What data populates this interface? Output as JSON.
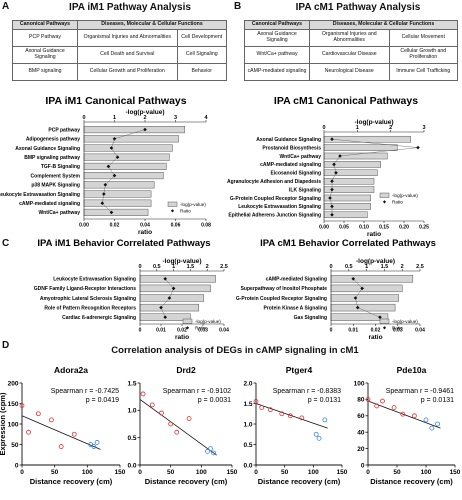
{
  "panel_a": {
    "letter": "A",
    "title": "IPA iM1 Pathway Analysis",
    "table": {
      "headers": [
        "Canonical Pathways",
        "Diseases, Molecular & Cellular Functions"
      ],
      "rows": [
        [
          "PCP Pathway",
          "Organismal Injuries and Abnormalities",
          "Cell Development"
        ],
        [
          "Axonal Guidance Signaling",
          "Cell Death and Survival",
          "Cell Signaling"
        ],
        [
          "BMP signaling",
          "Cellular Growth and Proliferation",
          "Behavior"
        ]
      ]
    }
  },
  "panel_b": {
    "letter": "B",
    "title": "IPA cM1 Pathway Analysis",
    "table": {
      "headers": [
        "Canonical Pathways",
        "Diseases, Molecular & Cellular Functions"
      ],
      "rows": [
        [
          "Axonal Guidance Signaling",
          "Organismal Injuries and Abnormalities",
          "Cellular Movement"
        ],
        [
          "Wnt/Ca+ pathway",
          "Cardiovascular Disease",
          "Cellular Growth and Proliferation"
        ],
        [
          "cAMP-mediated signaling",
          "Neurological Disease",
          "Immune Cell Trafficking"
        ]
      ]
    }
  },
  "panel_c": {
    "letter": "C"
  },
  "panel_d": {
    "letter": "D",
    "title": "Correlation analysis of DEGs in cAMP signaling in cM1"
  },
  "legend": {
    "bar_label": "-log(p-value)",
    "ratio_label": "Ratio"
  },
  "colors": {
    "bar": "#d4d4d4",
    "red_points": "#e03030",
    "blue_points": "#3a86d8"
  },
  "chart_data": [
    {
      "type": "bar",
      "title": "IPA iM1 Canonical Pathways",
      "top_axis_label": "-log(p-value)",
      "bottom_axis_label": "ratio",
      "xlim_top": [
        0,
        4
      ],
      "top_ticks": [
        "0",
        "1",
        "2",
        "3",
        "4"
      ],
      "xlim_bottom": [
        0,
        0.08
      ],
      "bottom_ticks": [
        "0.00",
        "0.02",
        "0.04",
        "0.06",
        "0.08"
      ],
      "categories": [
        "PCP pathway",
        "Adipogenesis pathway",
        "Axonal Guidance Signaling",
        "BMP signaling pathway",
        "TGF-B Signaling",
        "Complement System",
        "p38 MAPK Signaling",
        "Leukocyte Extravasation Signaling",
        "cAMP-mediated signaling",
        "Wnt/Ca+ pathway"
      ],
      "values": [
        3.3,
        3.1,
        2.9,
        2.8,
        2.7,
        2.6,
        2.3,
        2.2,
        2.2,
        2.1
      ],
      "ratio": [
        0.04,
        0.02,
        0.018,
        0.022,
        0.016,
        0.02,
        0.014,
        0.013,
        0.012,
        0.018
      ]
    },
    {
      "type": "bar",
      "title": "IPA cM1 Canonical Pathways",
      "top_axis_label": "-log(p-value)",
      "bottom_axis_label": "ratio",
      "xlim_top": [
        0,
        3
      ],
      "top_ticks": [
        "0",
        "1",
        "2",
        "3"
      ],
      "xlim_bottom": [
        0,
        0.25
      ],
      "bottom_ticks": [
        "0.00",
        "0.05",
        "0.10",
        "0.15",
        "0.20",
        "0.25"
      ],
      "categories": [
        "Axonal Guidance Signaling",
        "Prostanoid Biosynthesis",
        "Wnt/Ca+ pathway",
        "cAMP-mediated signaling",
        "Eicosanoid Signaling",
        "Agranulocyte Adhesion and Diapedesis",
        "ILK Signaling",
        "G-Protein Coupled Receptor Signaling",
        "Leukocyte Extravasation Signaling",
        "Epithelial Adherens Junction Signaling"
      ],
      "values": [
        2.6,
        2.2,
        1.9,
        1.7,
        1.6,
        1.5,
        1.5,
        1.4,
        1.4,
        1.3
      ],
      "ratio": [
        0.02,
        0.235,
        0.04,
        0.025,
        0.03,
        0.02,
        0.02,
        0.015,
        0.02,
        0.02
      ]
    },
    {
      "type": "bar",
      "title": "IPA iM1 Behavior Correlated Pathways",
      "top_axis_label": "-log(p-value)",
      "bottom_axis_label": "ratio",
      "xlim_top": [
        0,
        2.5
      ],
      "top_ticks": [
        "0",
        "0.5",
        "1",
        "1.5",
        "2",
        "2.5"
      ],
      "xlim_bottom": [
        0,
        0.04
      ],
      "bottom_ticks": [
        "0",
        "0.01",
        "0.02",
        "0.03",
        "0.04"
      ],
      "categories": [
        "Leukocyte Extravasation Signaling",
        "GDNF Family Ligand-Receptor Interactions",
        "Amyotrophic Lateral Sclerosis Signaling",
        "Role of Pattern Recognition Receptors",
        "Cardiac ß-adrenergic Signaling"
      ],
      "values": [
        2.25,
        2.1,
        1.9,
        1.75,
        1.5
      ],
      "ratio": [
        0.012,
        0.016,
        0.014,
        0.01,
        0.012
      ]
    },
    {
      "type": "bar",
      "title": "IPA cM1 Behavior Correlated Pathways",
      "top_axis_label": "-log(p-value)",
      "bottom_axis_label": "ratio",
      "xlim_top": [
        0,
        2.5
      ],
      "top_ticks": [
        "0",
        "0.5",
        "1",
        "1.5",
        "2",
        "2.5"
      ],
      "xlim_bottom": [
        0,
        0.04
      ],
      "bottom_ticks": [
        "0",
        "0.01",
        "0.02",
        "0.03",
        "0.04"
      ],
      "categories": [
        "cAMP-mediated Signaling",
        "Superpathway of Inositol Phosphate",
        "G-Protein Coupled Receptor Signaling",
        "Protein Kinase A Signaling",
        "Gas Signaling"
      ],
      "values": [
        2.3,
        2.0,
        1.9,
        1.8,
        1.6
      ],
      "ratio": [
        0.01,
        0.014,
        0.011,
        0.012,
        0.022
      ]
    },
    {
      "type": "scatter",
      "title": "Adora2a",
      "xlabel": "Distance recovery (cm)",
      "ylabel": "Expression (cpm)",
      "stat_r": "Spearman r = -0.7425",
      "stat_p": "p = 0.0419",
      "xlim": [
        0,
        150
      ],
      "ylim": [
        0,
        200
      ],
      "x_ticks": [
        "0",
        "50",
        "100",
        "150"
      ],
      "y_ticks": [
        "0",
        "50",
        "100",
        "150",
        "200"
      ],
      "red_points": [
        [
          0,
          145
        ],
        [
          10,
          80
        ],
        [
          25,
          125
        ],
        [
          45,
          110
        ],
        [
          60,
          45
        ],
        [
          80,
          75
        ]
      ],
      "blue_points": [
        [
          105,
          50
        ],
        [
          110,
          45
        ],
        [
          115,
          55
        ]
      ],
      "fit": [
        [
          0,
          120
        ],
        [
          120,
          38
        ]
      ]
    },
    {
      "type": "scatter",
      "title": "Drd2",
      "xlabel": "Distance recovery (cm)",
      "ylabel": "",
      "stat_r": "Spearman r = -0.9102",
      "stat_p": "p = 0.0031",
      "xlim": [
        0,
        150
      ],
      "ylim": [
        0,
        1.5
      ],
      "x_ticks": [
        "0",
        "50",
        "100",
        "150"
      ],
      "y_ticks": [
        "0.0",
        "0.5",
        "1.0",
        "1.5"
      ],
      "red_points": [
        [
          5,
          1.3
        ],
        [
          20,
          1.1
        ],
        [
          35,
          0.95
        ],
        [
          50,
          0.75
        ],
        [
          60,
          0.6
        ],
        [
          80,
          0.85
        ]
      ],
      "blue_points": [
        [
          110,
          0.25
        ],
        [
          115,
          0.3
        ],
        [
          120,
          0.22
        ]
      ],
      "fit": [
        [
          0,
          1.2
        ],
        [
          125,
          0.18
        ]
      ]
    },
    {
      "type": "scatter",
      "title": "Ptger4",
      "xlabel": "Distance recovery (cm)",
      "ylabel": "",
      "stat_r": "Spearman r = -0.8383",
      "stat_p": "p = 0.0131",
      "xlim": [
        0,
        150
      ],
      "ylim": [
        0,
        2.0
      ],
      "x_ticks": [
        "0",
        "50",
        "100",
        "150"
      ],
      "y_ticks": [
        "0.0",
        "0.5",
        "1.0",
        "1.5",
        "2.0"
      ],
      "red_points": [
        [
          0,
          1.55
        ],
        [
          10,
          1.4
        ],
        [
          25,
          1.35
        ],
        [
          45,
          1.25
        ],
        [
          60,
          1.2
        ],
        [
          80,
          1.15
        ]
      ],
      "blue_points": [
        [
          105,
          0.75
        ],
        [
          110,
          0.65
        ],
        [
          120,
          1.1
        ]
      ],
      "fit": [
        [
          0,
          1.5
        ],
        [
          125,
          0.9
        ]
      ]
    },
    {
      "type": "scatter",
      "title": "Pde10a",
      "xlabel": "Distance recovery (cm)",
      "ylabel": "",
      "stat_r": "Spearman r = -0.9461",
      "stat_p": "p = 0.0131",
      "xlim": [
        0,
        150
      ],
      "ylim": [
        0,
        100
      ],
      "x_ticks": [
        "0",
        "50",
        "100",
        "150"
      ],
      "y_ticks": [
        "0",
        "20",
        "40",
        "60",
        "80",
        "100"
      ],
      "red_points": [
        [
          0,
          80
        ],
        [
          15,
          72
        ],
        [
          25,
          78
        ],
        [
          45,
          70
        ],
        [
          60,
          62
        ],
        [
          80,
          60
        ]
      ],
      "blue_points": [
        [
          100,
          55
        ],
        [
          110,
          45
        ],
        [
          120,
          50
        ]
      ],
      "fit": [
        [
          0,
          78
        ],
        [
          125,
          45
        ]
      ]
    }
  ]
}
